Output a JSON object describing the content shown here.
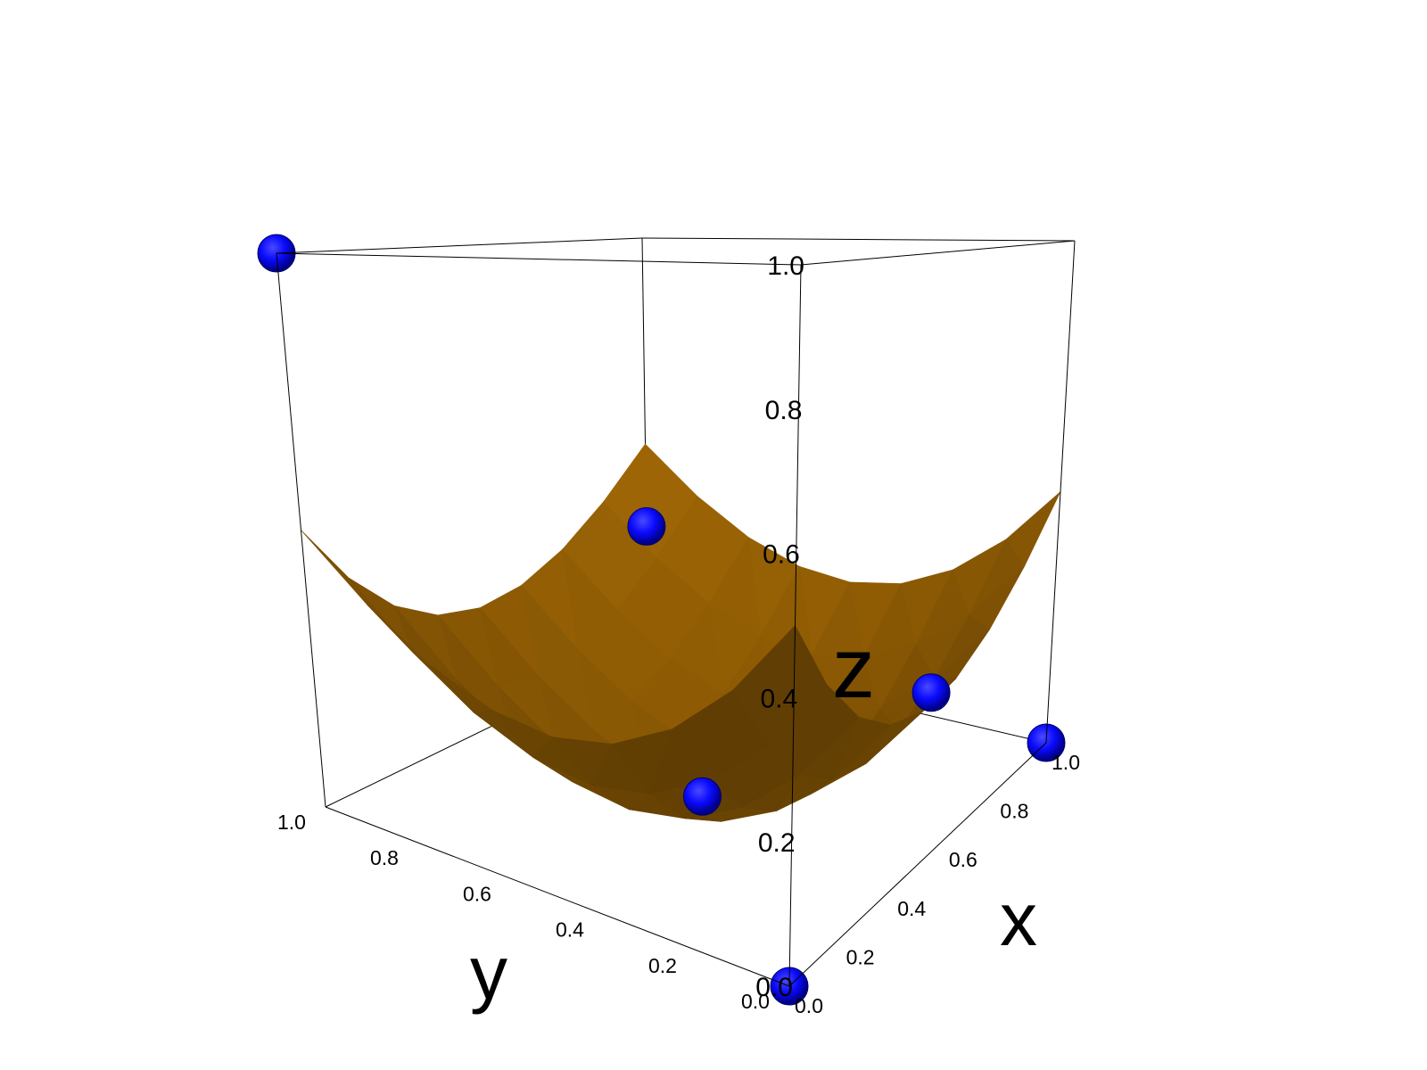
{
  "chart_data": {
    "type": "surface3d",
    "axes": {
      "x": {
        "label": "x",
        "ticks": [
          "0.0",
          "0.2",
          "0.4",
          "0.6",
          "0.8",
          "1.0"
        ],
        "range": [
          0,
          1
        ]
      },
      "y": {
        "label": "y",
        "ticks": [
          "0.0",
          "0.2",
          "0.4",
          "0.6",
          "0.8",
          "1.0"
        ],
        "range": [
          0,
          1
        ]
      },
      "z": {
        "label": "z",
        "ticks": [
          "0.0",
          "0.2",
          "0.4",
          "0.6",
          "0.8",
          "1.0"
        ],
        "range": [
          0,
          1
        ]
      }
    },
    "surface": {
      "formula": "z = 0.5*(x - y)^2 + 0.5*(1 - x - y)^2",
      "grid_steps": 8,
      "color": "#a56a05"
    },
    "points": {
      "color": "#0a0aff",
      "values": [
        {
          "x": 0.0,
          "y": 0.0,
          "z": 0.0
        },
        {
          "x": 0.0,
          "y": 1.0,
          "z": 1.0
        },
        {
          "x": 1.0,
          "y": 0.0,
          "z": 0.0
        },
        {
          "x": 0.5,
          "y": 0.5,
          "z": 0.0
        },
        {
          "x": 1.0,
          "y": 1.0,
          "z": 0.3
        },
        {
          "x": 0.7,
          "y": 0.1,
          "z": 0.2
        }
      ]
    },
    "grid": false,
    "legend": "none"
  }
}
